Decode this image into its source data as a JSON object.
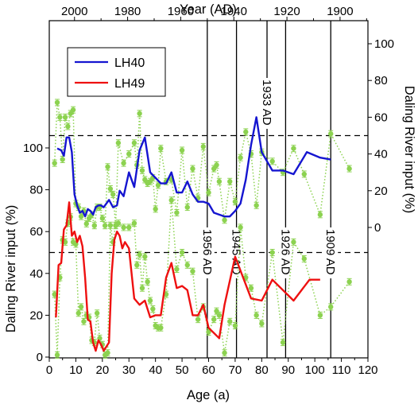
{
  "chart_data": [
    {
      "type": "line",
      "title": "",
      "xlabel": "Age (a)",
      "x2label": "Year (AD)",
      "ylabel": "Daling River input (%)",
      "xlim": [
        0,
        120
      ],
      "ylim": [
        0,
        100
      ],
      "x_ticks": [
        0,
        10,
        20,
        30,
        40,
        50,
        60,
        70,
        80,
        90,
        100,
        110,
        120
      ],
      "x2_ticks": [
        2000,
        1980,
        1960,
        1940,
        1920,
        1900
      ],
      "y_ticks": [
        0,
        20,
        40,
        60,
        80,
        100
      ],
      "reference_level": 50,
      "grid": false,
      "legend": {
        "position": "top-left",
        "entries": [
          "LH40",
          "LH49"
        ]
      },
      "annotations": [
        {
          "label": "1956 AD",
          "x": 59.5
        },
        {
          "label": "1945 AD",
          "x": 70.5
        },
        {
          "label": "1933 AD",
          "x": 82.0
        },
        {
          "label": "1926 AD",
          "x": 89.0
        },
        {
          "label": "1909 AD",
          "x": 106.0
        }
      ]
    },
    {
      "panel": "top",
      "series": [
        {
          "name": "LH40",
          "style": "solid line",
          "color": "#1515d0",
          "x": [
            3,
            4.5,
            5.5,
            6.5,
            7.5,
            8.5,
            9.5,
            10.5,
            11.5,
            12.5,
            13.5,
            14.5,
            15.5,
            16.5,
            17.5,
            18.5,
            19.5,
            20.5,
            21.5,
            22.5,
            24,
            25.5,
            26.5,
            28,
            30,
            32,
            34,
            36,
            38,
            40,
            42,
            44,
            46,
            48,
            50,
            52,
            54,
            56,
            58,
            60,
            62,
            64,
            66,
            68,
            70,
            72,
            74,
            76,
            78,
            80,
            84,
            88,
            92,
            97,
            102,
            106
          ],
          "y": [
            43,
            42,
            39,
            49,
            49,
            41,
            18,
            12,
            8,
            9,
            6,
            10,
            9,
            7,
            11,
            12,
            12,
            11,
            13,
            15,
            11,
            12,
            20,
            17,
            30,
            22,
            42,
            49,
            30,
            27,
            24,
            24,
            30,
            19,
            19,
            25,
            18,
            14,
            14,
            13,
            8,
            7,
            6,
            6,
            9,
            13,
            26,
            45,
            60,
            41,
            31,
            31,
            29,
            41,
            38,
            37
          ]
        },
        {
          "name": "",
          "style": "dotted line with error-bar markers",
          "color": "#8cd250",
          "x": [
            2,
            3,
            4,
            5,
            6,
            7,
            8,
            9,
            10,
            11,
            12,
            13,
            14,
            15,
            16,
            17,
            18,
            19,
            20,
            21,
            22,
            23,
            24,
            25,
            26,
            28,
            30,
            32,
            33,
            34,
            35,
            36,
            37,
            38,
            39,
            40,
            41,
            42,
            44,
            46,
            48,
            50,
            52,
            54,
            56,
            58,
            60,
            62,
            63,
            64,
            66,
            68,
            70,
            72,
            74,
            76,
            78,
            80,
            84,
            88,
            92,
            96,
            102,
            106,
            113
          ],
          "y": [
            35,
            68,
            60,
            37,
            60,
            55,
            62,
            64,
            13,
            11,
            6,
            9,
            2,
            5,
            7,
            1,
            11,
            11,
            5,
            1,
            33,
            21,
            18,
            1,
            46,
            35,
            40,
            46,
            34,
            62,
            31,
            26,
            24,
            25,
            27,
            10,
            23,
            43,
            25,
            26,
            8,
            42,
            11,
            32,
            16,
            44,
            19,
            32,
            34,
            25,
            4,
            25,
            14,
            38,
            52,
            40,
            12,
            41,
            36,
            30,
            43,
            29,
            7,
            51,
            32
          ]
        }
      ]
    },
    {
      "panel": "bottom",
      "series": [
        {
          "name": "LH49",
          "style": "solid line",
          "color": "#ee1010",
          "x": [
            2.5,
            3.5,
            4.5,
            5.5,
            6.5,
            7.5,
            8.5,
            9.5,
            10.5,
            11.5,
            12.5,
            13.5,
            14.5,
            15.5,
            16.5,
            17.5,
            18.5,
            19.5,
            20.5,
            21.5,
            22.5,
            23.5,
            24.5,
            25.5,
            26.5,
            27.5,
            28.5,
            30,
            32,
            34,
            36,
            38,
            40,
            42,
            44,
            46,
            48,
            50,
            52,
            54,
            56,
            58,
            60,
            64,
            66,
            70,
            76,
            80,
            84,
            92,
            98,
            102
          ],
          "y": [
            19,
            44,
            45,
            61,
            63,
            74,
            58,
            60,
            55,
            58,
            53,
            38,
            18,
            17,
            7,
            3,
            8,
            6,
            3,
            5,
            7,
            40,
            56,
            60,
            58,
            52,
            55,
            52,
            28,
            25,
            27,
            19,
            20,
            20,
            38,
            45,
            33,
            34,
            32,
            20,
            20,
            25,
            14,
            9,
            25,
            48,
            28,
            27,
            37,
            27,
            37,
            37
          ]
        },
        {
          "name": "",
          "style": "dotted line with error-bar markers",
          "color": "#8cd250",
          "x": [
            2,
            3,
            4,
            5,
            6,
            7,
            8,
            9,
            10,
            11,
            12,
            13,
            14,
            15,
            16,
            17,
            18,
            19,
            20,
            21,
            22,
            23,
            24,
            25,
            26,
            28,
            30,
            32,
            33,
            34,
            35,
            36,
            37,
            38,
            39,
            40,
            41,
            42,
            44,
            46,
            48,
            50,
            52,
            54,
            56,
            58,
            60,
            62,
            63,
            64,
            66,
            68,
            70,
            72,
            74,
            76,
            78,
            80,
            84,
            88,
            92,
            96,
            102,
            106,
            113
          ],
          "y": [
            30,
            1,
            38,
            56,
            55,
            64,
            67,
            55,
            54,
            21,
            24,
            17,
            20,
            19,
            8,
            7,
            21,
            9,
            6,
            1,
            2,
            63,
            55,
            63,
            64,
            62,
            62,
            64,
            44,
            49,
            33,
            48,
            36,
            27,
            23,
            15,
            14,
            14,
            30,
            75,
            42,
            50,
            44,
            41,
            18,
            24,
            12,
            18,
            22,
            20,
            2,
            17,
            15,
            62,
            38,
            33,
            20,
            16,
            50,
            7,
            55,
            47,
            20,
            24,
            36
          ]
        }
      ]
    }
  ]
}
